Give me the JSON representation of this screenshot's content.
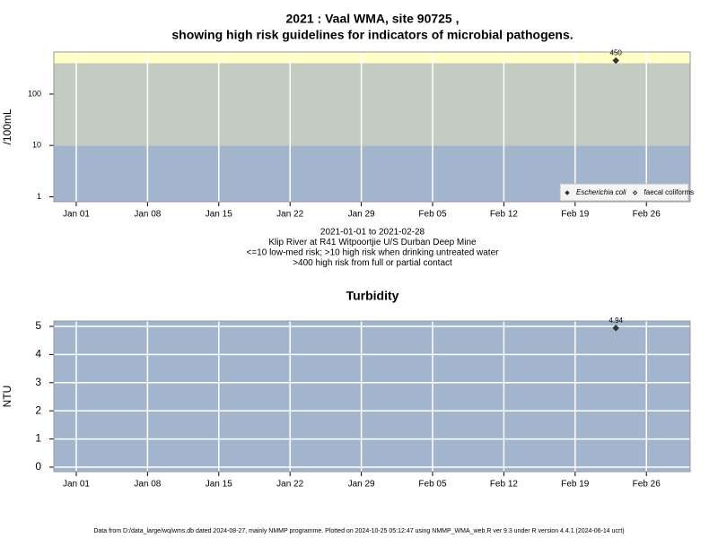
{
  "chart_data": [
    {
      "type": "scatter",
      "title": [
        "2021 : Vaal WMA, site 90725 ,",
        "showing high risk guidelines for indicators of microbial pathogens."
      ],
      "ylabel": "/100mL",
      "log_y": true,
      "x": [
        53
      ],
      "series": [
        {
          "name": "Escherichia coli",
          "color": "#333333",
          "marker": "filled",
          "values": [
            450
          ]
        },
        {
          "name": "faecal coliforms",
          "color": "#333333",
          "marker": "open",
          "values": [
            null
          ]
        }
      ],
      "xlim": [
        -2.2,
        60.3
      ],
      "xticks": [
        {
          "value": 0,
          "label": "Jan 01"
        },
        {
          "value": 7,
          "label": "Jan 08"
        },
        {
          "value": 14,
          "label": "Jan 15"
        },
        {
          "value": 21,
          "label": "Jan 22"
        },
        {
          "value": 28,
          "label": "Jan 29"
        },
        {
          "value": 35,
          "label": "Feb 05"
        },
        {
          "value": 42,
          "label": "Feb 12"
        },
        {
          "value": 49,
          "label": "Feb 19"
        },
        {
          "value": 56,
          "label": "Feb 26"
        }
      ],
      "ylim": [
        0.8,
        660
      ],
      "yticks": [
        1,
        10,
        100
      ],
      "thresholds": [
        10,
        400
      ],
      "band_colors": [
        "#a3b5cd",
        "#c3ccc1",
        "#ffffc6"
      ],
      "xgrid": true,
      "ygrid": false,
      "legend": "bottom-right",
      "notes": [
        "2021-01-01 to 2021-02-28",
        "Klip River at R41 Witpoortjie U/S Durban Deep Mine",
        "<=10 low-med risk; >10 high risk when drinking untreated water",
        ">400 high risk from full or partial contact"
      ]
    },
    {
      "type": "scatter",
      "title": [
        "Turbidity"
      ],
      "ylabel": "NTU",
      "log_y": false,
      "x": [
        53
      ],
      "series": [
        {
          "name": "Turbidity",
          "color": "#333333",
          "marker": "filled",
          "values": [
            4.94
          ]
        }
      ],
      "xlim": [
        -2.2,
        60.3
      ],
      "xticks": [
        {
          "value": 0,
          "label": "Jan 01"
        },
        {
          "value": 7,
          "label": "Jan 08"
        },
        {
          "value": 14,
          "label": "Jan 15"
        },
        {
          "value": 21,
          "label": "Jan 22"
        },
        {
          "value": 28,
          "label": "Jan 29"
        },
        {
          "value": 35,
          "label": "Feb 05"
        },
        {
          "value": 42,
          "label": "Feb 12"
        },
        {
          "value": 49,
          "label": "Feb 19"
        },
        {
          "value": 56,
          "label": "Feb 26"
        }
      ],
      "ylim": [
        -0.16,
        5.19
      ],
      "yticks": [
        0,
        1,
        2,
        3,
        4,
        5
      ],
      "band_colors": [
        "#a3b5cd"
      ],
      "xgrid": true,
      "ygrid": true
    }
  ],
  "footer": "Data from D:/data_large/wq/wms.db dated 2024-08-27, mainly NMMP programme. Plotted on 2024-10-25 05:12:47 using NMMP_WMA_web.R ver 9.3 under R version 4.4.1 (2024-06-14 ucrt)"
}
